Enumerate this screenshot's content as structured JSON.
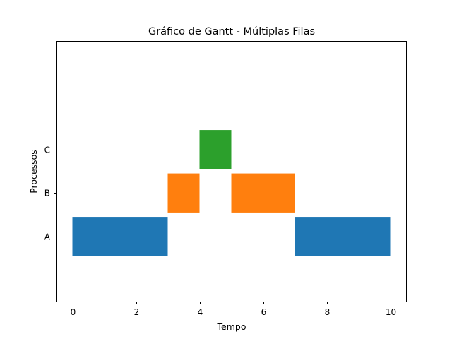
{
  "chart_data": {
    "type": "gantt",
    "title": "Gráfico de Gantt - Múltiplas Filas",
    "xlabel": "Tempo",
    "ylabel": "Processos",
    "xlim": [
      -0.5,
      10.5
    ],
    "xticks": [
      0,
      2,
      4,
      6,
      8,
      10
    ],
    "ylim": [
      -1.5,
      4.5
    ],
    "grid": false,
    "categories": [
      "A",
      "B",
      "C"
    ],
    "series": [
      {
        "category": "A",
        "color": "#1f77b4",
        "segments": [
          {
            "start": 0,
            "end": 3
          },
          {
            "start": 7,
            "end": 10
          }
        ]
      },
      {
        "category": "B",
        "color": "#ff7f0e",
        "segments": [
          {
            "start": 3,
            "end": 4
          },
          {
            "start": 5,
            "end": 7
          }
        ]
      },
      {
        "category": "C",
        "color": "#2ca02c",
        "segments": [
          {
            "start": 4,
            "end": 5
          }
        ]
      }
    ]
  }
}
